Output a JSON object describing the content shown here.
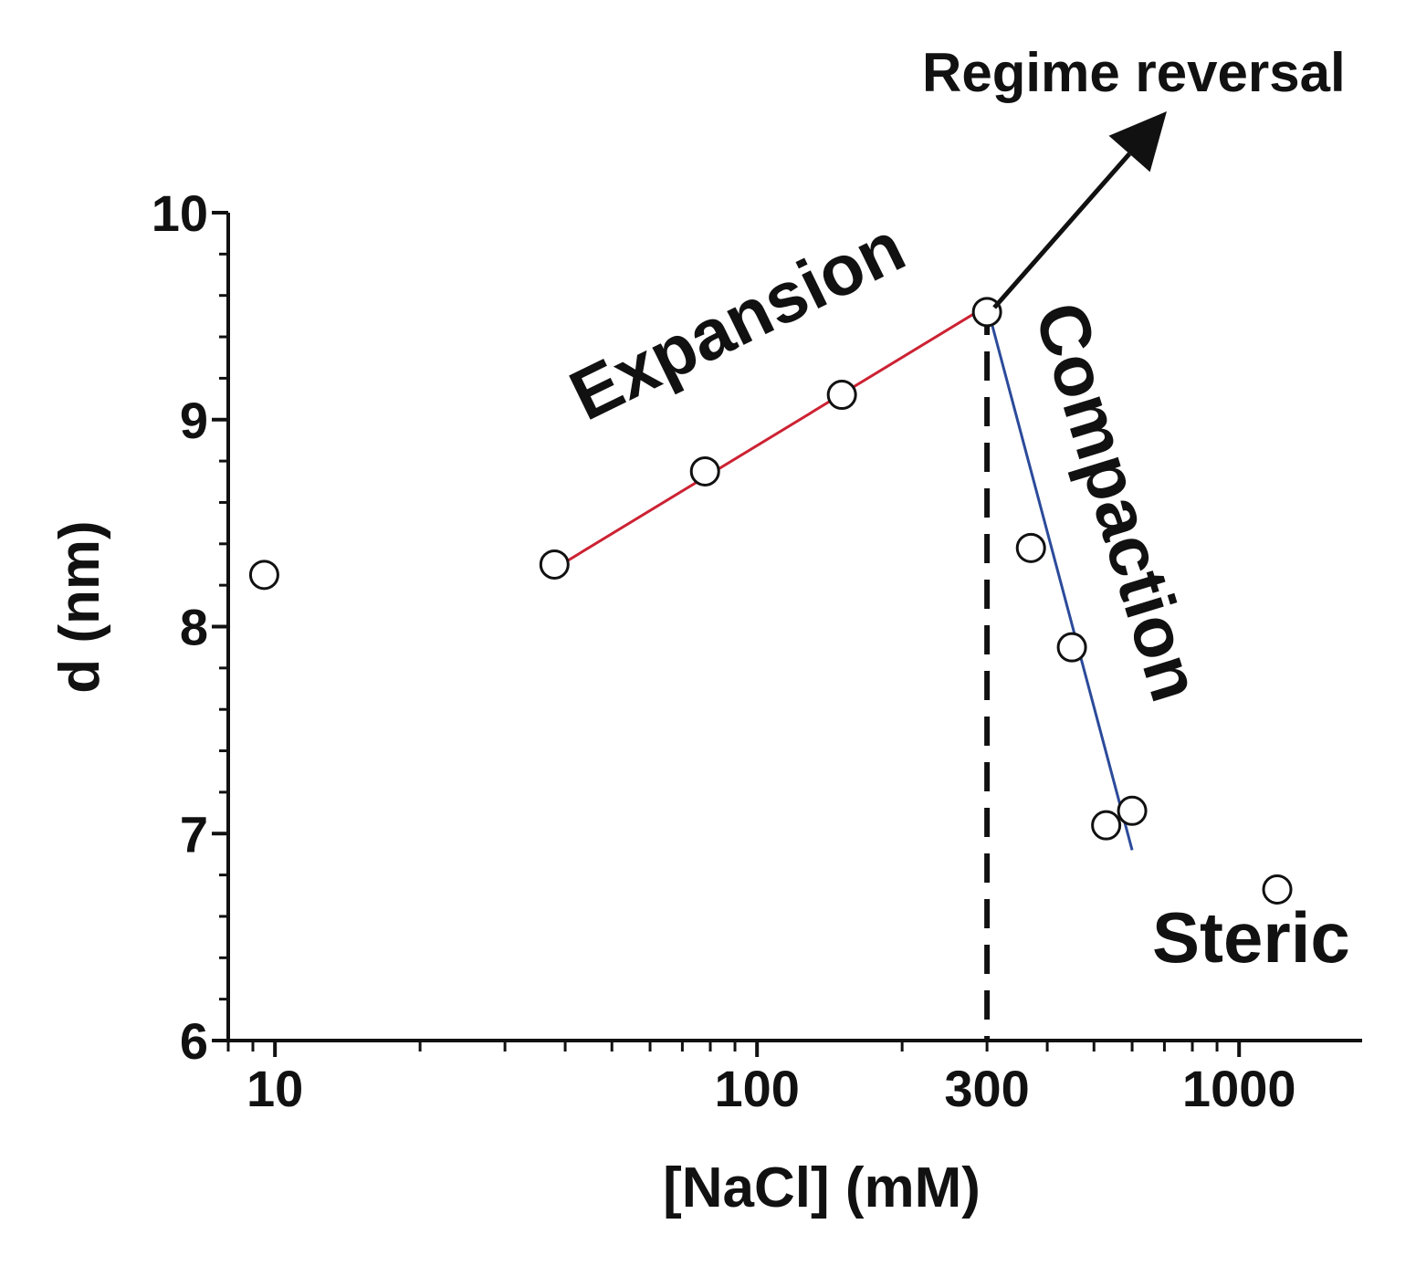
{
  "chart_data": {
    "type": "scatter",
    "xlabel": "[NaCl] (mM)",
    "ylabel": "d (nm)",
    "x_scale": "log",
    "xlim": [
      8,
      1800
    ],
    "ylim": [
      6,
      10
    ],
    "xticks": [
      10,
      100,
      300,
      1000
    ],
    "xtick_labels": [
      "10",
      "100",
      "300",
      "1000"
    ],
    "yticks": [
      6,
      7,
      8,
      9,
      10
    ],
    "ytick_labels": [
      "6",
      "7",
      "8",
      "9",
      "10"
    ],
    "grid": false,
    "series": [
      {
        "points": [
          {
            "x": 9.5,
            "y": 8.25
          },
          {
            "x": 38,
            "y": 8.3
          },
          {
            "x": 78,
            "y": 8.75
          },
          {
            "x": 150,
            "y": 9.12
          },
          {
            "x": 300,
            "y": 9.52
          },
          {
            "x": 370,
            "y": 8.38
          },
          {
            "x": 450,
            "y": 7.9
          },
          {
            "x": 530,
            "y": 7.04
          },
          {
            "x": 600,
            "y": 7.11
          },
          {
            "x": 1200,
            "y": 6.73
          }
        ],
        "marker": "open-circle",
        "color": "#111111"
      }
    ],
    "fit_lines": [
      {
        "from": [
          38,
          8.28
        ],
        "to": [
          300,
          9.55
        ],
        "color": "#cc2233"
      },
      {
        "from": [
          300,
          9.55
        ],
        "to": [
          600,
          6.92
        ],
        "color": "#2b4a9a"
      }
    ],
    "reference_line": {
      "x": 300,
      "style": "dashed",
      "color": "#111111"
    },
    "annotations": {
      "expansion": "Expansion",
      "compaction": "Compaction",
      "steric": "Steric",
      "regime_reversal": "Regime reversal"
    }
  }
}
